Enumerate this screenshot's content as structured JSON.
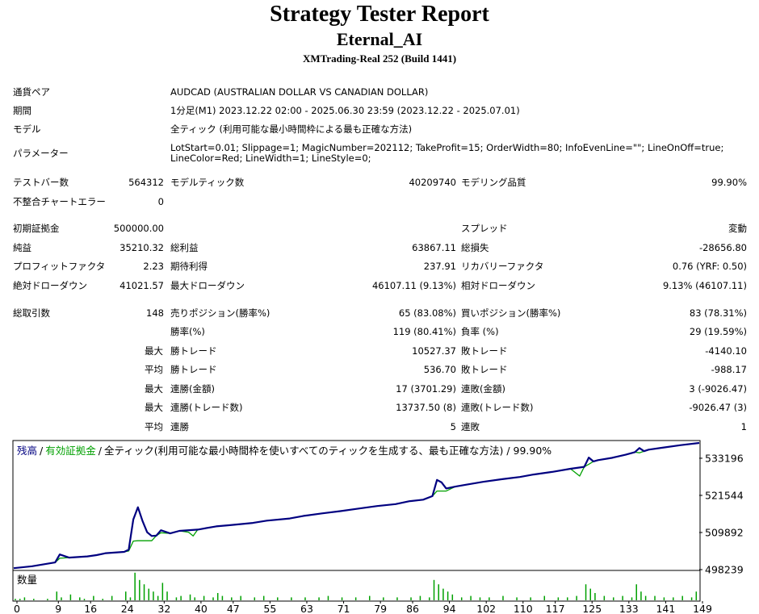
{
  "report": {
    "title": "Strategy Tester Report",
    "ea_name": "Eternal_AI",
    "server": "XMTrading-Real 252 (Build 1441)"
  },
  "settings": {
    "symbol_label": "通貨ペア",
    "symbol": "AUDCAD (AUSTRALIAN DOLLAR VS CANADIAN DOLLAR)",
    "period_label": "期間",
    "period": "1分足(M1) 2023.12.22 02:00 - 2025.06.30 23:59 (2023.12.22 - 2025.07.01)",
    "model_label": "モデル",
    "model": "全ティック (利用可能な最小時間枠による最も正確な方法)",
    "params_label": "パラメーター",
    "params": "LotStart=0.01; Slippage=1; MagicNumber=202112; TakeProfit=15; OrderWidth=80; InfoEvenLine=\"\"; LineOnOff=true; LineColor=Red; LineWidth=1; LineStyle=0;"
  },
  "stats": {
    "bars_label": "テストバー数",
    "bars": "564312",
    "ticks_label": "モデルティック数",
    "ticks": "40209740",
    "quality_label": "モデリング品質",
    "quality": "99.90%",
    "errors_label": "不整合チャートエラー",
    "errors": "0",
    "deposit_label": "初期証拠金",
    "deposit": "500000.00",
    "spread_label": "スプレッド",
    "spread": "変動",
    "net_label": "純益",
    "net": "35210.32",
    "gross_profit_label": "総利益",
    "gross_profit": "63867.11",
    "gross_loss_label": "総損失",
    "gross_loss": "-28656.80",
    "pf_label": "プロフィットファクタ",
    "pf": "2.23",
    "payoff_label": "期待利得",
    "payoff": "237.91",
    "recovery_label": "リカバリーファクタ",
    "recovery": "0.76 (YRF: 0.50)",
    "abs_dd_label": "絶対ドローダウン",
    "abs_dd": "41021.57",
    "max_dd_label": "最大ドローダウン",
    "max_dd": "46107.11 (9.13%)",
    "rel_dd_label": "相対ドローダウン",
    "rel_dd": "9.13% (46107.11)"
  },
  "trades": {
    "total_label": "総取引数",
    "total": "148",
    "short_label": "売りポジション(勝率%)",
    "short": "65 (83.08%)",
    "long_label": "買いポジション(勝率%)",
    "long": "83 (78.31%)",
    "win_rate_label": "勝率(%)",
    "win_rate": "119 (80.41%)",
    "loss_rate_label": "負率 (%)",
    "loss_rate": "29 (19.59%)",
    "max_label": "最大",
    "avg_label": "平均",
    "largest_win_label": "勝トレード",
    "largest_win": "10527.37",
    "largest_loss_label": "敗トレード",
    "largest_loss": "-4140.10",
    "avg_win_label": "勝トレード",
    "avg_win": "536.70",
    "avg_loss_label": "敗トレード",
    "avg_loss": "-988.17",
    "max_cons_wins_label": "連勝(金額)",
    "max_cons_wins": "17 (3701.29)",
    "max_cons_losses_label": "連敗(金額)",
    "max_cons_losses": "3 (-9026.47)",
    "max_cons_profit_label": "連勝(トレード数)",
    "max_cons_profit": "13737.50 (8)",
    "max_cons_loss_label": "連敗(トレード数)",
    "max_cons_loss": "-9026.47 (3)",
    "avg_cons_wins_label": "連勝",
    "avg_cons_wins": "5",
    "avg_cons_losses_label": "連敗",
    "avg_cons_losses": "1"
  },
  "chart_data": {
    "type": "line",
    "legend": {
      "balance": "残高",
      "sep1": "/",
      "equity": "有効証拠金",
      "sep2": "/",
      "desc": "全ティック(利用可能な最小時間枠を使いすべてのティックを生成する、最も正確な方法) / 99.90%"
    },
    "volume_label": "数量",
    "colors": {
      "balance": "#000080",
      "equity": "#00a000",
      "volume": "#00a000"
    },
    "ylim": [
      498239,
      538500
    ],
    "y_ticks": [
      "533196",
      "521544",
      "509892",
      "498239"
    ],
    "xlim": [
      0,
      149
    ],
    "x_ticks": [
      "0",
      "9",
      "16",
      "24",
      "32",
      "40",
      "47",
      "55",
      "63",
      "71",
      "79",
      "86",
      "94",
      "102",
      "110",
      "117",
      "125",
      "133",
      "141",
      "149"
    ],
    "series": [
      {
        "name": "残高",
        "x": [
          0,
          4,
          9,
          10,
          12,
          16,
          18,
          20,
          24,
          25,
          26,
          27,
          28,
          29,
          30,
          31,
          32,
          34,
          36,
          40,
          44,
          47,
          52,
          55,
          60,
          63,
          67,
          71,
          75,
          79,
          83,
          86,
          89,
          91,
          92,
          93,
          94,
          96,
          98,
          102,
          106,
          110,
          113,
          117,
          121,
          124,
          125,
          126,
          127,
          130,
          133,
          135,
          136,
          137,
          138,
          141,
          145,
          149
        ],
        "y": [
          498700,
          499300,
          500500,
          503000,
          502000,
          502400,
          502800,
          503400,
          503800,
          504500,
          514000,
          517800,
          513500,
          510000,
          508800,
          508900,
          510600,
          509600,
          510400,
          510800,
          511800,
          512200,
          512900,
          513600,
          514300,
          515100,
          515900,
          516600,
          517400,
          518200,
          518800,
          519700,
          520200,
          521300,
          526400,
          525600,
          523700,
          524300,
          524800,
          525800,
          526600,
          527300,
          528100,
          528900,
          529900,
          530500,
          533400,
          532200,
          532600,
          533300,
          534300,
          535100,
          536400,
          535400,
          535900,
          536500,
          537300,
          538000
        ]
      },
      {
        "name": "有効証拠金",
        "x": [
          0,
          4,
          9,
          10,
          12,
          16,
          18,
          20,
          24,
          25,
          26,
          27,
          28,
          29,
          30,
          31,
          32,
          34,
          36,
          38,
          39,
          40,
          44,
          47,
          52,
          55,
          60,
          63,
          67,
          71,
          75,
          79,
          83,
          86,
          89,
          91,
          92,
          93,
          94,
          96,
          98,
          102,
          106,
          110,
          113,
          117,
          121,
          123,
          124,
          125,
          126,
          127,
          130,
          133,
          135,
          136,
          137,
          138,
          141,
          145,
          149
        ],
        "y": [
          498700,
          499300,
          500500,
          501800,
          502000,
          502400,
          502800,
          503400,
          503800,
          504100,
          507200,
          507300,
          507300,
          507300,
          507300,
          508900,
          509800,
          509600,
          510400,
          510000,
          508800,
          510800,
          511800,
          512200,
          512900,
          513600,
          514300,
          515100,
          515900,
          516600,
          517400,
          518200,
          518800,
          519700,
          520200,
          521300,
          522900,
          522900,
          522900,
          524300,
          524800,
          525800,
          526600,
          527300,
          528100,
          528900,
          529900,
          527600,
          530500,
          531300,
          532200,
          532600,
          533300,
          534300,
          535100,
          534900,
          535400,
          535900,
          536500,
          537300,
          538000
        ]
      }
    ],
    "volume": [
      {
        "x": 0,
        "v": 1
      },
      {
        "x": 1,
        "v": 1
      },
      {
        "x": 2,
        "v": 2
      },
      {
        "x": 4,
        "v": 1
      },
      {
        "x": 7,
        "v": 1
      },
      {
        "x": 9,
        "v": 6
      },
      {
        "x": 10,
        "v": 2
      },
      {
        "x": 12,
        "v": 4
      },
      {
        "x": 14,
        "v": 2
      },
      {
        "x": 15,
        "v": 1
      },
      {
        "x": 17,
        "v": 3
      },
      {
        "x": 19,
        "v": 1
      },
      {
        "x": 21,
        "v": 3
      },
      {
        "x": 24,
        "v": 6
      },
      {
        "x": 25,
        "v": 2
      },
      {
        "x": 26,
        "v": 19
      },
      {
        "x": 27,
        "v": 14
      },
      {
        "x": 28,
        "v": 11
      },
      {
        "x": 29,
        "v": 8
      },
      {
        "x": 30,
        "v": 6
      },
      {
        "x": 31,
        "v": 3
      },
      {
        "x": 32,
        "v": 12
      },
      {
        "x": 33,
        "v": 6
      },
      {
        "x": 35,
        "v": 2
      },
      {
        "x": 36,
        "v": 3
      },
      {
        "x": 38,
        "v": 4
      },
      {
        "x": 39,
        "v": 2
      },
      {
        "x": 41,
        "v": 3
      },
      {
        "x": 43,
        "v": 2
      },
      {
        "x": 44,
        "v": 5
      },
      {
        "x": 45,
        "v": 3
      },
      {
        "x": 47,
        "v": 2
      },
      {
        "x": 49,
        "v": 3
      },
      {
        "x": 52,
        "v": 2
      },
      {
        "x": 54,
        "v": 3
      },
      {
        "x": 57,
        "v": 2
      },
      {
        "x": 60,
        "v": 2
      },
      {
        "x": 63,
        "v": 2
      },
      {
        "x": 66,
        "v": 2
      },
      {
        "x": 68,
        "v": 3
      },
      {
        "x": 71,
        "v": 2
      },
      {
        "x": 74,
        "v": 2
      },
      {
        "x": 77,
        "v": 3
      },
      {
        "x": 80,
        "v": 2
      },
      {
        "x": 83,
        "v": 2
      },
      {
        "x": 86,
        "v": 2
      },
      {
        "x": 88,
        "v": 3
      },
      {
        "x": 90,
        "v": 2
      },
      {
        "x": 91,
        "v": 14
      },
      {
        "x": 92,
        "v": 11
      },
      {
        "x": 93,
        "v": 8
      },
      {
        "x": 94,
        "v": 6
      },
      {
        "x": 95,
        "v": 4
      },
      {
        "x": 97,
        "v": 2
      },
      {
        "x": 99,
        "v": 3
      },
      {
        "x": 101,
        "v": 2
      },
      {
        "x": 103,
        "v": 2
      },
      {
        "x": 106,
        "v": 3
      },
      {
        "x": 109,
        "v": 2
      },
      {
        "x": 112,
        "v": 2
      },
      {
        "x": 115,
        "v": 3
      },
      {
        "x": 118,
        "v": 2
      },
      {
        "x": 120,
        "v": 2
      },
      {
        "x": 122,
        "v": 3
      },
      {
        "x": 124,
        "v": 11
      },
      {
        "x": 125,
        "v": 8
      },
      {
        "x": 126,
        "v": 5
      },
      {
        "x": 128,
        "v": 3
      },
      {
        "x": 130,
        "v": 2
      },
      {
        "x": 132,
        "v": 3
      },
      {
        "x": 134,
        "v": 2
      },
      {
        "x": 135,
        "v": 11
      },
      {
        "x": 136,
        "v": 6
      },
      {
        "x": 137,
        "v": 3
      },
      {
        "x": 139,
        "v": 3
      },
      {
        "x": 141,
        "v": 2
      },
      {
        "x": 143,
        "v": 2
      },
      {
        "x": 145,
        "v": 3
      },
      {
        "x": 147,
        "v": 2
      },
      {
        "x": 148,
        "v": 6
      }
    ],
    "volume_max": 20
  }
}
